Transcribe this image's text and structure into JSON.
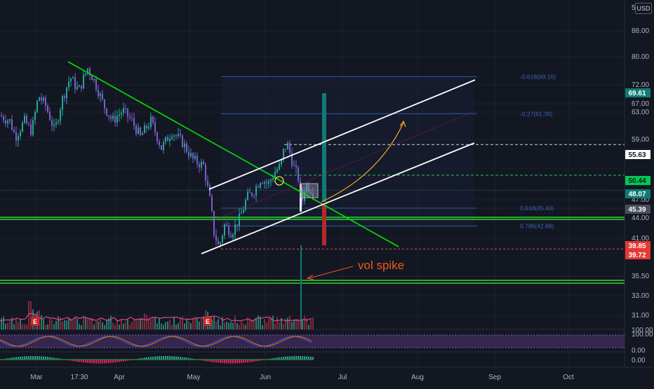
{
  "currency": "USD",
  "top_price_partial": "5",
  "colors": {
    "background": "#131722",
    "grid": "#1e2230",
    "candle_up": "#26a69a",
    "candle_down": "#7b5ccf",
    "channel": "#ffffff",
    "downtrend": "#00e600",
    "support": "#34ff34",
    "fib": "#2e5aa8",
    "fib_label": "#3b63b8",
    "teal_bar": "#0f7b74",
    "red_bar": "#b22b2b",
    "annotation": "#f2561d",
    "curve": "#f5a623",
    "volume_up": "#2c7a73",
    "volume_down": "#7d2a3a",
    "volume_ma": "#e0478a",
    "stoch_band": "#3f2a5a",
    "stoch_k": "#2962ff",
    "stoch_d": "#ff6d00",
    "macd_pos": "#26a69a",
    "macd_neg": "#e91e63"
  },
  "annotation_text": "vol spike",
  "chart_data": {
    "type": "candlestick",
    "title": "",
    "x_axis_labels": [
      "Mar",
      "17:30",
      "Apr",
      "May",
      "Jun",
      "Jul",
      "Aug",
      "Sep",
      "Oct"
    ],
    "y_axis_ticks": [
      "88.00",
      "80.00",
      "72.00",
      "67.00",
      "63.00",
      "59.00",
      "55.63",
      "50.44",
      "47.00",
      "44.00",
      "41.00",
      "35.50",
      "33.00",
      "31.00"
    ],
    "ylim": [
      30,
      95
    ],
    "scale": "log",
    "price_tags": [
      {
        "value": "69.61",
        "style": "teal"
      },
      {
        "value": "55.63",
        "style": "white"
      },
      {
        "value": "50.44",
        "style": "green"
      },
      {
        "value": "48.07",
        "style": "teal"
      },
      {
        "value": "45.39",
        "style": "gray"
      },
      {
        "value": "39.85",
        "style": "red"
      },
      {
        "value": "39.72",
        "style": "red"
      }
    ],
    "fib_levels": [
      {
        "label": "-0.618(69.10)",
        "value": 69.1
      },
      {
        "label": "-0.27(61.39)",
        "value": 61.39
      },
      {
        "label": "0.618(45.40)",
        "value": 45.4
      },
      {
        "label": "0.786(42.88)",
        "value": 42.88
      }
    ],
    "horizontal_lines": [
      {
        "value": 55.63,
        "style": "dashed-white"
      },
      {
        "value": 50.44,
        "style": "dashed-green"
      },
      {
        "value": 48.07,
        "style": "dotted-teal"
      },
      {
        "value": 44.0,
        "style": "support-green"
      },
      {
        "value": 39.85,
        "style": "dashed-red"
      },
      {
        "value": 34.8,
        "style": "support-green"
      }
    ],
    "price_approx": [
      {
        "period": "early Mar",
        "value": 60
      },
      {
        "period": "mid Mar",
        "value": 70
      },
      {
        "period": "early Apr",
        "value": 64
      },
      {
        "period": "late Apr",
        "value": 58
      },
      {
        "period": "early May",
        "value": 49
      },
      {
        "period": "mid May",
        "value": 41
      },
      {
        "period": "late May",
        "value": 47
      },
      {
        "period": "early Jun",
        "value": 55
      },
      {
        "period": "mid Jun",
        "value": 48
      }
    ],
    "volume_axis": [
      "100.00",
      "0.00"
    ],
    "stoch_axis": [
      "100.00",
      "0.00"
    ],
    "macd_axis": [
      "0.00"
    ]
  }
}
